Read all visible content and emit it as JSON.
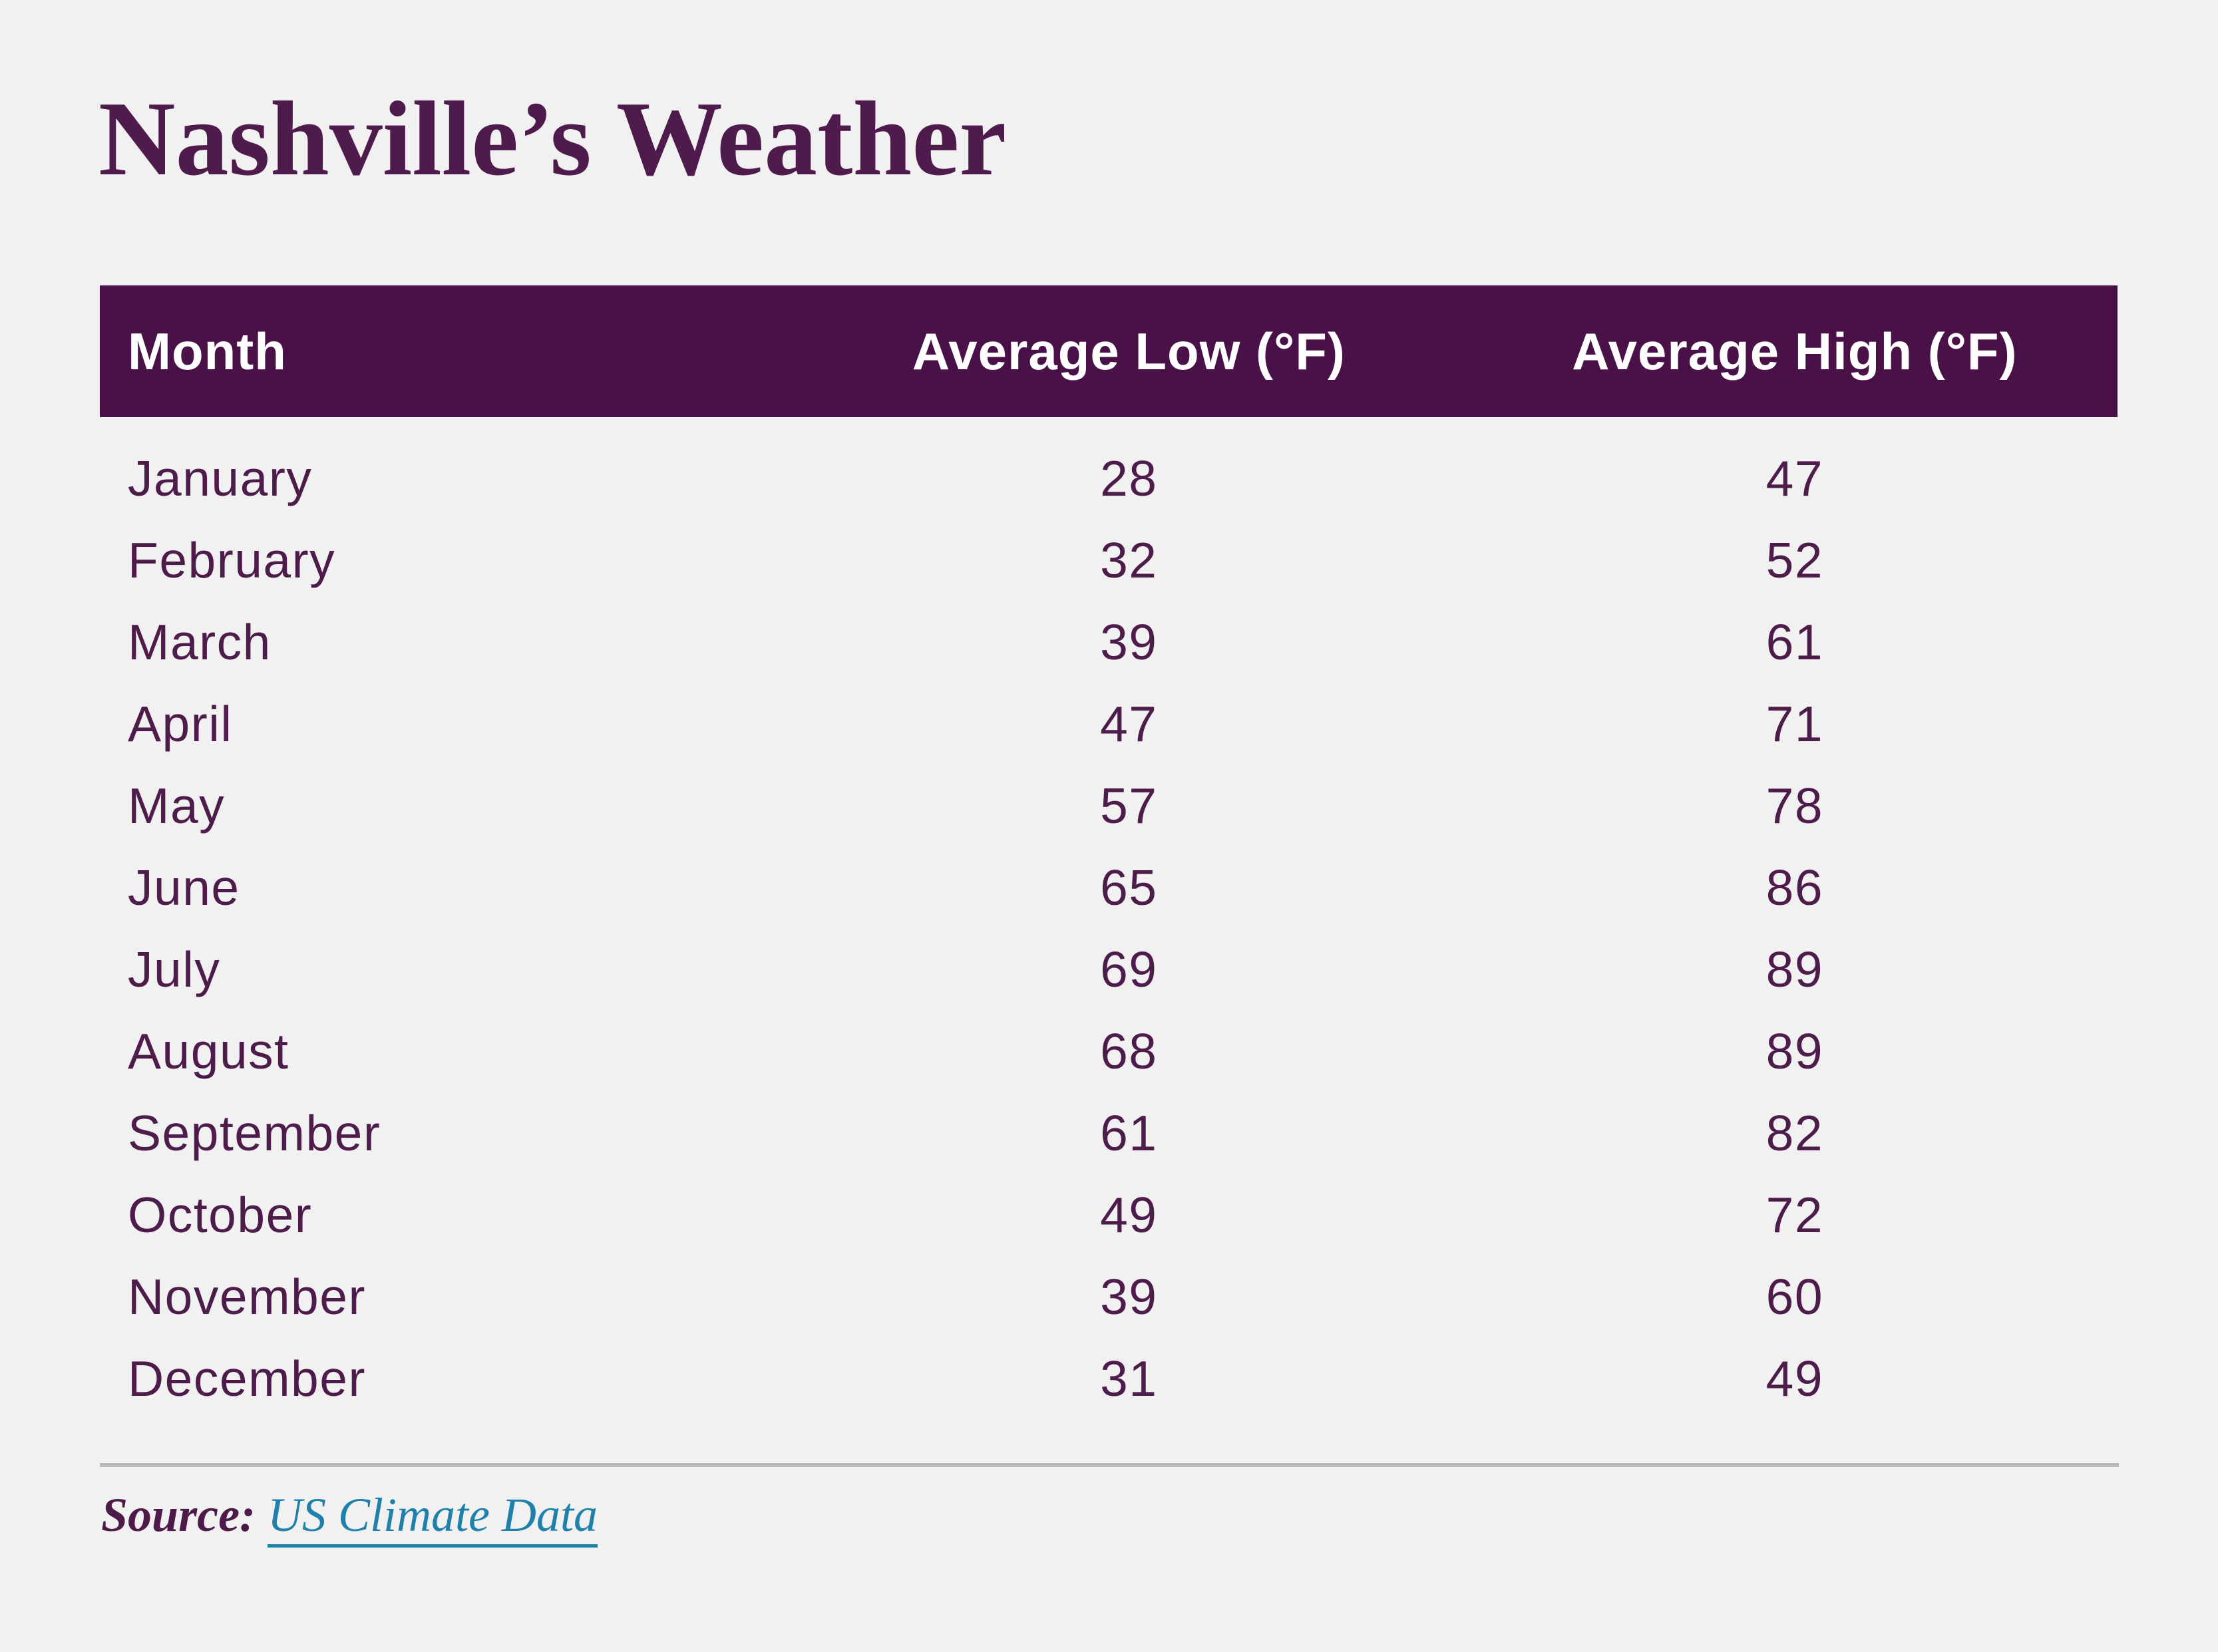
{
  "page": {
    "title": "Nashville’s Weather",
    "background_color": "#f0f1f0"
  },
  "table": {
    "columns": {
      "month": "Month",
      "low": "Average Low (°F)",
      "high": "Average High (°F)"
    },
    "header_bg_color": "#491148",
    "header_text_color": "#ffffff",
    "body_text_color": "#4d1c4a",
    "rows": [
      {
        "month": "January",
        "low": "28",
        "high": "47"
      },
      {
        "month": "February",
        "low": "32",
        "high": "52"
      },
      {
        "month": "March",
        "low": "39",
        "high": "61"
      },
      {
        "month": "April",
        "low": "47",
        "high": "71"
      },
      {
        "month": "May",
        "low": "57",
        "high": "78"
      },
      {
        "month": "June",
        "low": "65",
        "high": "86"
      },
      {
        "month": "July",
        "low": "69",
        "high": "89"
      },
      {
        "month": "August",
        "low": "68",
        "high": "89"
      },
      {
        "month": "September",
        "low": "61",
        "high": "82"
      },
      {
        "month": "October",
        "low": "49",
        "high": "72"
      },
      {
        "month": "November",
        "low": "39",
        "high": "60"
      },
      {
        "month": "December",
        "low": "31",
        "high": "49"
      }
    ]
  },
  "footer": {
    "source_label": "Source:",
    "source_link": "US Climate Data",
    "link_color": "#1f81ab",
    "divider_color": "#b9b9b9"
  },
  "chart_data": {
    "type": "table",
    "title": "Nashville’s Weather",
    "columns": [
      "Month",
      "Average Low (°F)",
      "Average High (°F)"
    ],
    "rows": [
      [
        "January",
        28,
        47
      ],
      [
        "February",
        32,
        52
      ],
      [
        "March",
        39,
        61
      ],
      [
        "April",
        47,
        71
      ],
      [
        "May",
        57,
        78
      ],
      [
        "June",
        65,
        86
      ],
      [
        "July",
        69,
        89
      ],
      [
        "August",
        68,
        89
      ],
      [
        "September",
        61,
        82
      ],
      [
        "October",
        49,
        72
      ],
      [
        "November",
        39,
        60
      ],
      [
        "December",
        31,
        49
      ]
    ],
    "source": "US Climate Data"
  }
}
